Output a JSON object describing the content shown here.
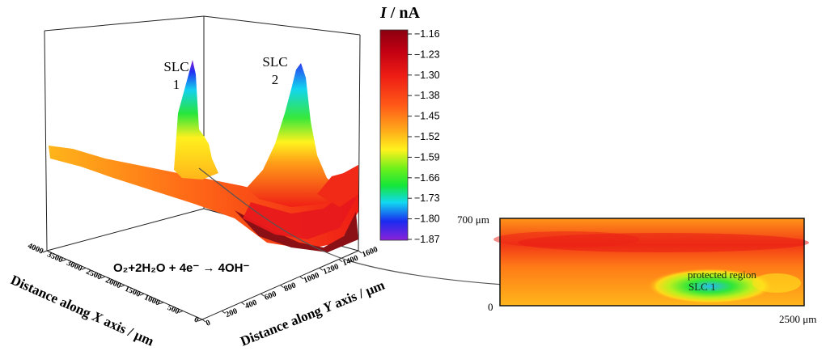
{
  "chart_data": [
    {
      "type": "surface3d",
      "title": "",
      "zlabel_italic": "I",
      "zlabel_rest": " / nA",
      "xlabel_pre": "Distance along ",
      "xlabel_var": "X",
      "xlabel_post": " axis / μm",
      "ylabel_pre": "Distance along ",
      "ylabel_var": "Y",
      "ylabel_post": " axis / μm",
      "x_ticks": [
        "4000",
        "3500",
        "3000",
        "2500",
        "2000",
        "1500",
        "1000",
        "500",
        "0"
      ],
      "y_ticks": [
        "0",
        "200",
        "400",
        "600",
        "800",
        "1000",
        "1200",
        "1400",
        "1600"
      ],
      "xlim": [
        0,
        4000
      ],
      "ylim": [
        0,
        1600
      ],
      "peaks": [
        {
          "label_line1": "SLC",
          "label_line2": "1",
          "value": -1.87
        },
        {
          "label_line1": "SLC",
          "label_line2": "2",
          "value": -1.63
        }
      ],
      "equation": "O₂+2H₂O + 4e⁻ → 4OH⁻",
      "colorbar": {
        "ticks": [
          "−1.16",
          "−1.23",
          "−1.30",
          "−1.38",
          "−1.45",
          "−1.52",
          "−1.59",
          "−1.66",
          "−1.73",
          "−1.80",
          "−1.87"
        ],
        "range": [
          -1.87,
          -1.16
        ],
        "colors": [
          "#8a0010",
          "#c10012",
          "#ef1d15",
          "#ff5a17",
          "#ffac1a",
          "#fff21e",
          "#6cf01c",
          "#15e638",
          "#11d9f0",
          "#1a2bf0",
          "#8a22d8"
        ]
      }
    },
    {
      "type": "heatmap",
      "y_top_label": "700 μm",
      "y_bottom_label": "0",
      "x_right_label": "2500 μm",
      "annotation_1": "protected region",
      "annotation_2": "SLC 1"
    }
  ]
}
